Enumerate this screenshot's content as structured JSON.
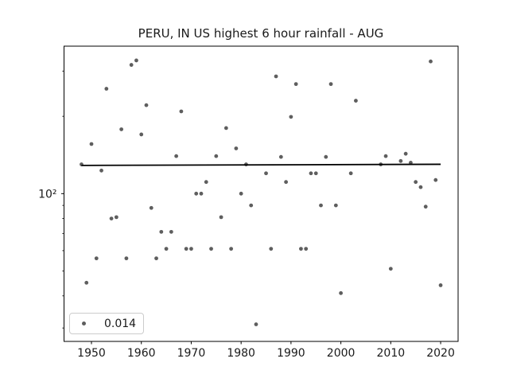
{
  "chart_data": {
    "type": "scatter",
    "title": "PERU, IN US highest 6 hour rainfall - AUG",
    "xlabel": "",
    "ylabel": "",
    "yscale": "log",
    "grid": false,
    "xlim": [
      1944.5,
      2023.5
    ],
    "ylim": [
      26.6,
      375
    ],
    "xticks": [
      1950,
      1960,
      1970,
      1980,
      1990,
      2000,
      2010,
      2020
    ],
    "ytick_major": {
      "value": 100,
      "label": "10²"
    },
    "yticks_minor": [
      30,
      40,
      50,
      60,
      70,
      80,
      90,
      200,
      300
    ],
    "legend": {
      "label": "0.014",
      "position": "lower left"
    },
    "trend_line": {
      "x": [
        1948,
        2020
      ],
      "y": [
        128.8,
        130.1
      ],
      "color": "#000000"
    },
    "colors": {
      "point": "#5e5e5e",
      "axes": "#000000",
      "text": "#1a1a1a",
      "background": "#ffffff"
    },
    "points": [
      [
        1948,
        130
      ],
      [
        1949,
        45
      ],
      [
        1950,
        156
      ],
      [
        1951,
        56
      ],
      [
        1952,
        123
      ],
      [
        1953,
        256
      ],
      [
        1954,
        80
      ],
      [
        1955,
        81
      ],
      [
        1956,
        178
      ],
      [
        1957,
        56
      ],
      [
        1958,
        317
      ],
      [
        1959,
        330
      ],
      [
        1960,
        170
      ],
      [
        1961,
        221
      ],
      [
        1962,
        88
      ],
      [
        1963,
        56
      ],
      [
        1964,
        71
      ],
      [
        1965,
        61
      ],
      [
        1966,
        71
      ],
      [
        1967,
        140
      ],
      [
        1968,
        209
      ],
      [
        1969,
        61
      ],
      [
        1970,
        61
      ],
      [
        1971,
        100
      ],
      [
        1972,
        100
      ],
      [
        1973,
        111
      ],
      [
        1974,
        61
      ],
      [
        1975,
        140
      ],
      [
        1976,
        81
      ],
      [
        1977,
        180
      ],
      [
        1978,
        61
      ],
      [
        1979,
        150
      ],
      [
        1980,
        100
      ],
      [
        1981,
        130
      ],
      [
        1982,
        90
      ],
      [
        1983,
        31
      ],
      [
        1985,
        120
      ],
      [
        1986,
        61
      ],
      [
        1987,
        286
      ],
      [
        1988,
        139
      ],
      [
        1989,
        111
      ],
      [
        1990,
        199
      ],
      [
        1991,
        267
      ],
      [
        1992,
        61
      ],
      [
        1993,
        61
      ],
      [
        1994,
        120
      ],
      [
        1995,
        120
      ],
      [
        1996,
        90
      ],
      [
        1997,
        139
      ],
      [
        1998,
        267
      ],
      [
        1999,
        90
      ],
      [
        2000,
        41
      ],
      [
        2002,
        120
      ],
      [
        2003,
        230
      ],
      [
        2008,
        130
      ],
      [
        2009,
        140
      ],
      [
        2010,
        51
      ],
      [
        2012,
        134
      ],
      [
        2013,
        143
      ],
      [
        2014,
        132
      ],
      [
        2015,
        111
      ],
      [
        2016,
        106
      ],
      [
        2017,
        89
      ],
      [
        2018,
        327
      ],
      [
        2019,
        113
      ],
      [
        2020,
        44
      ]
    ]
  }
}
